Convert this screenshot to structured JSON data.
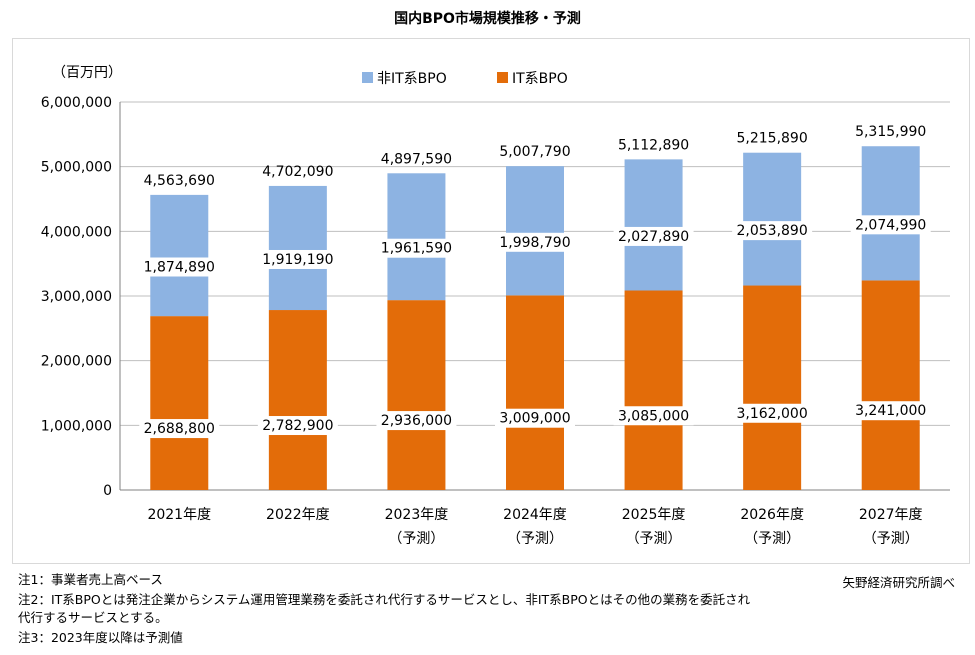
{
  "title": "国内BPO市場規模推移・予測",
  "chart_data": {
    "type": "bar",
    "stacked": true,
    "title": "国内BPO市場規模推移・予測",
    "unit_label": "（百万円）",
    "ylim": [
      0,
      6000000
    ],
    "yticks": [
      0,
      1000000,
      2000000,
      3000000,
      4000000,
      5000000,
      6000000
    ],
    "ytick_labels": [
      "0",
      "1,000,000",
      "2,000,000",
      "3,000,000",
      "4,000,000",
      "5,000,000",
      "6,000,000"
    ],
    "categories": [
      "2021年度",
      "2022年度",
      "2023年度",
      "2024年度",
      "2025年度",
      "2026年度",
      "2027年度"
    ],
    "category_sublabels": [
      "",
      "",
      "（予測）",
      "（予測）",
      "（予測）",
      "（予測）",
      "（予測）"
    ],
    "series": [
      {
        "name": "IT系BPO",
        "color": "#e36c09",
        "values": [
          2688800,
          2782900,
          2936000,
          3009000,
          3085000,
          3162000,
          3241000
        ],
        "labels": [
          "2,688,800",
          "2,782,900",
          "2,936,000",
          "3,009,000",
          "3,085,000",
          "3,162,000",
          "3,241,000"
        ]
      },
      {
        "name": "非IT系BPO",
        "color": "#8db3e2",
        "values": [
          1874890,
          1919190,
          1961590,
          1998790,
          2027890,
          2053890,
          2074990
        ],
        "labels": [
          "1,874,890",
          "1,919,190",
          "1,961,590",
          "1,998,790",
          "2,027,890",
          "2,053,890",
          "2,074,990"
        ]
      }
    ],
    "totals": [
      4563690,
      4702090,
      4897590,
      5007790,
      5112890,
      5215890,
      5315990
    ],
    "total_labels": [
      "4,563,690",
      "4,702,090",
      "4,897,590",
      "5,007,790",
      "5,112,890",
      "5,215,890",
      "5,315,990"
    ],
    "legend_placement": "top",
    "grid": true
  },
  "notes": {
    "note1": "注1：事業者売上高ベース",
    "note2_line1": "注2：IT系BPOとは発注企業からシステム運用管理業務を委託され代行するサービスとし、非IT系BPOとはその他の業務を委託され",
    "note2_line2": "代行するサービスとする。",
    "note3": "注3：2023年度以降は予測値",
    "source": "矢野経済研究所調べ"
  }
}
